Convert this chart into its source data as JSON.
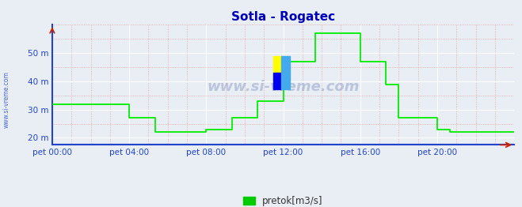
{
  "title": "Sotla - Rogatec",
  "ytick_labels": [
    "20 m",
    "30 m",
    "40 m",
    "50 m"
  ],
  "ytick_values": [
    20,
    30,
    40,
    50
  ],
  "ylim": [
    17.5,
    60
  ],
  "xlim": [
    0,
    288
  ],
  "xtick_positions": [
    0,
    48,
    96,
    144,
    192,
    240
  ],
  "xtick_labels": [
    "pet 00:00",
    "pet 04:00",
    "pet 08:00",
    "pet 12:00",
    "pet 16:00",
    "pet 20:00"
  ],
  "line_color": "#00ee00",
  "bg_color": "#e8eef4",
  "plot_bg_color": "#e8eef4",
  "grid_color_major": "#ffffff",
  "grid_color_minor": "#e8a0a0",
  "title_color": "#0000bb",
  "axis_color": "#2244cc",
  "tick_color": "#2244cc",
  "watermark": "www.si-vreme.com",
  "legend_label": "pretok[m3/s]",
  "legend_color": "#00cc00",
  "logo_yellow": "#ffff00",
  "logo_blue": "#0000ee",
  "logo_cyan": "#44aaee",
  "sidebar_text": "www.si-vreme.com",
  "sidebar_color": "#2244cc",
  "data_x": [
    0,
    48,
    48,
    64,
    64,
    96,
    96,
    112,
    112,
    128,
    128,
    144,
    144,
    164,
    164,
    192,
    192,
    208,
    208,
    216,
    216,
    240,
    240,
    248,
    248,
    288
  ],
  "data_y": [
    32,
    32,
    27,
    27,
    22,
    22,
    23,
    23,
    27,
    27,
    33,
    33,
    47,
    47,
    57,
    57,
    47,
    47,
    39,
    39,
    27,
    27,
    23,
    23,
    22,
    22
  ]
}
